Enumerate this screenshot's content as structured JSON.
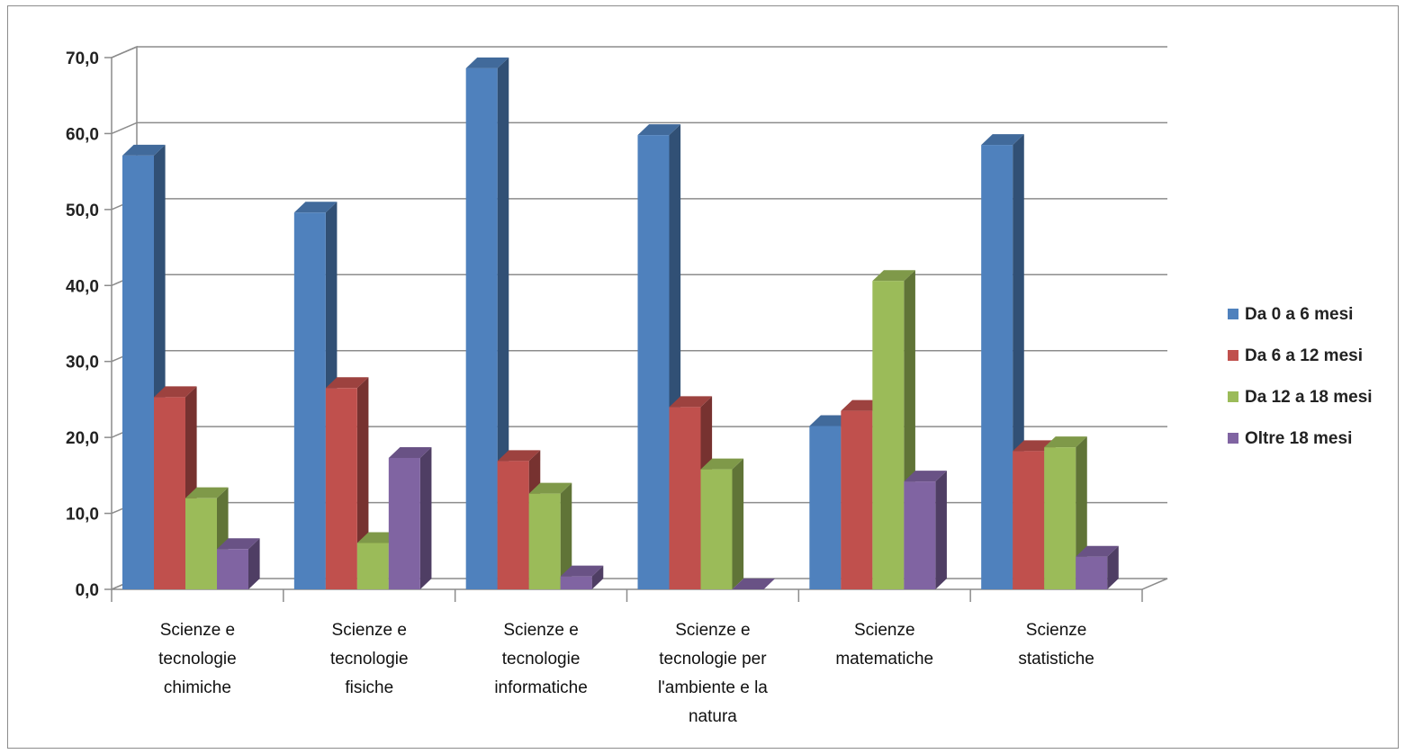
{
  "chart_data": {
    "type": "bar",
    "style": "3d-clustered-column",
    "title": "",
    "xlabel": "",
    "ylabel": "",
    "ylim": [
      0,
      70
    ],
    "ytick_step": 10,
    "ytick_labels": [
      "0,0",
      "10,0",
      "20,0",
      "30,0",
      "40,0",
      "50,0",
      "60,0",
      "70,0"
    ],
    "grid": true,
    "legend_position": "right",
    "categories": [
      [
        "Scienze e",
        "tecnologie",
        "chimiche"
      ],
      [
        "Scienze e",
        "tecnologie",
        "fisiche"
      ],
      [
        "Scienze e",
        "tecnologie",
        "informatiche"
      ],
      [
        "Scienze e",
        "tecnologie per",
        "l'ambiente e la",
        "natura"
      ],
      [
        "Scienze",
        "matematiche"
      ],
      [
        "Scienze",
        "statistiche"
      ]
    ],
    "series": [
      {
        "name": "Da 0 a 6 mesi",
        "color": "#4f81bd",
        "values": [
          57.1,
          49.6,
          68.6,
          59.8,
          21.5,
          58.5
        ]
      },
      {
        "name": "Da 6 a 12 mesi",
        "color": "#c0504d",
        "values": [
          25.3,
          26.5,
          16.9,
          24.0,
          23.5,
          18.2
        ]
      },
      {
        "name": "Da 12 a 18 mesi",
        "color": "#9bbb59",
        "values": [
          12.0,
          6.1,
          12.6,
          15.8,
          40.6,
          18.7
        ]
      },
      {
        "name": "Oltre 18 mesi",
        "color": "#8064a2",
        "values": [
          5.3,
          17.3,
          1.7,
          0.0,
          14.2,
          4.3
        ]
      }
    ]
  }
}
